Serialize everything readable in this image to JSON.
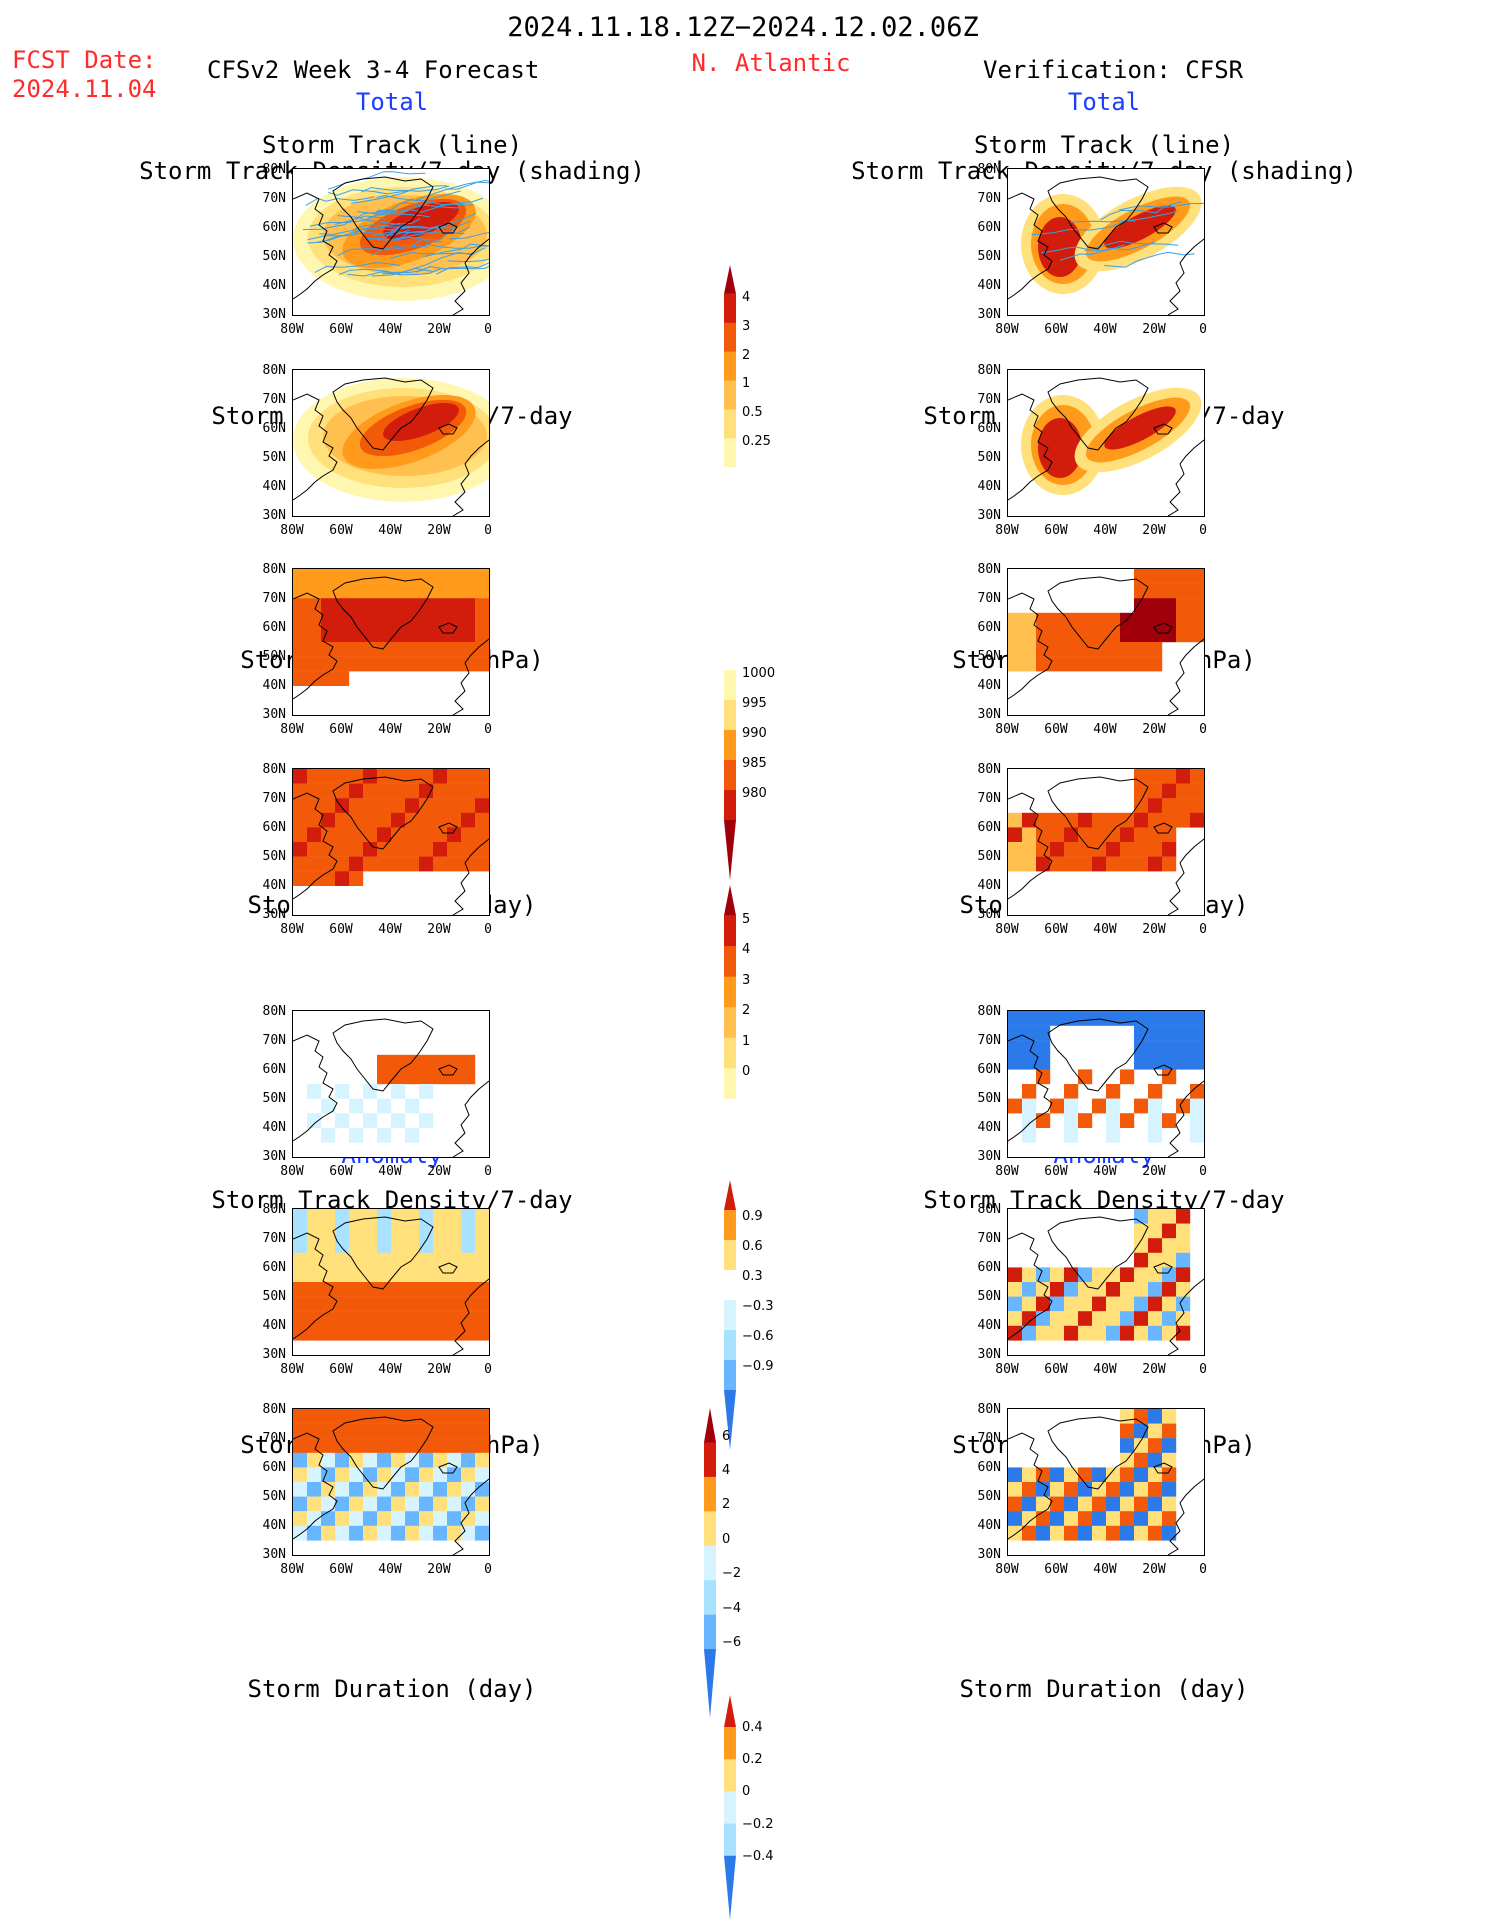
{
  "header": {
    "date_range": "2024.11.18.12Z−2024.12.02.06Z",
    "fcst_label": "FCST Date:",
    "fcst_date": "2024.11.04",
    "model_title": "CFSv2 Week 3-4 Forecast",
    "region": "N. Atlantic",
    "verification": "Verification: CFSR",
    "total_left": "Total",
    "total_right": "Total",
    "anomaly_left": "Anomaly",
    "anomaly_right": "Anomaly"
  },
  "axes": {
    "lat_ticks": [
      "80N",
      "70N",
      "60N",
      "50N",
      "40N",
      "30N"
    ],
    "lon_ticks": [
      "80W",
      "60W",
      "40W",
      "20W",
      "0"
    ]
  },
  "panel_titles": {
    "track_line": "Storm Track (line)",
    "track_shading": "Storm Track Density/7-day (shading)",
    "density": "Storm Track Density/7-day",
    "intensity": "Storm Intensity (hPa)",
    "duration": "Storm Duration (day)"
  },
  "colorbars": {
    "density_total": [
      "4",
      "3",
      "2",
      "1",
      "0.5",
      "0.25"
    ],
    "intensity_total": [
      "1000",
      "995",
      "990",
      "985",
      "980"
    ],
    "duration_total": [
      "5",
      "4",
      "3",
      "2",
      "1",
      "0"
    ],
    "density_anom": [
      "0.9",
      "0.6",
      "0.3",
      "−0.3",
      "−0.6",
      "−0.9"
    ],
    "intensity_anom": [
      "6",
      "4",
      "2",
      "0",
      "−2",
      "−4",
      "−6"
    ],
    "duration_anom": [
      "0.4",
      "0.2",
      "0",
      "−0.2",
      "−0.4"
    ]
  },
  "colors": {
    "warm": [
      "#fff7b0",
      "#ffe07a",
      "#ffc050",
      "#ff9a1a",
      "#f25a0a",
      "#d21c0c",
      "#a0000a"
    ],
    "cool": [
      "#d6f4ff",
      "#a8e2ff",
      "#68b6ff",
      "#2c7aea",
      "#0a4bd0"
    ],
    "title_red": "#ff2a2a",
    "title_blue": "#1a3dff",
    "track_line": "#3aa0e8"
  }
}
